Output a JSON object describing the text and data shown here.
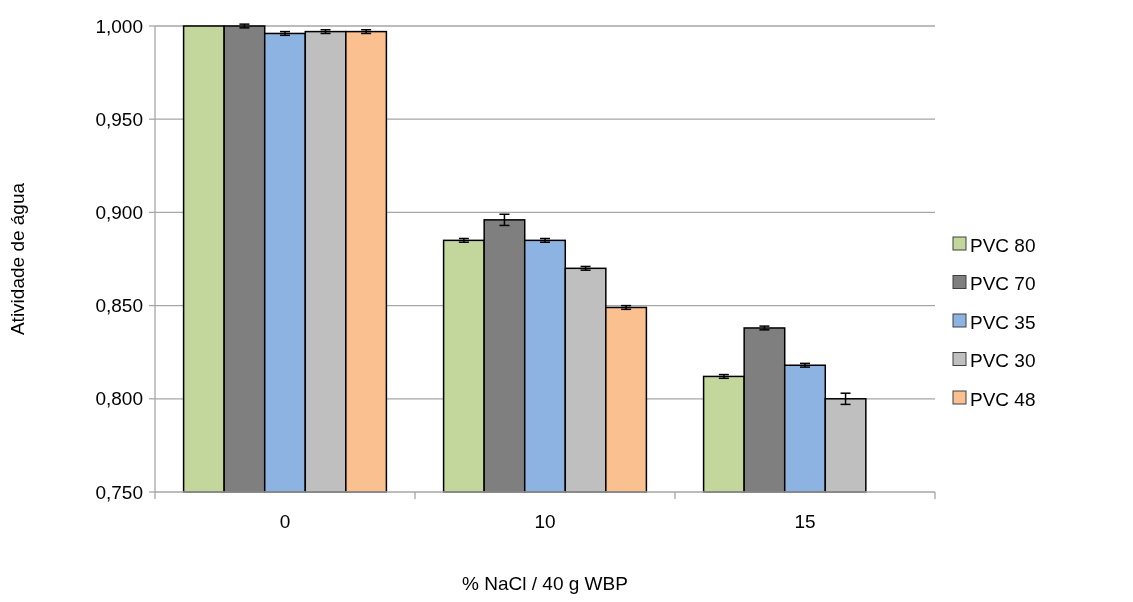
{
  "chart_data": {
    "type": "bar",
    "xlabel": "% NaCl / 40 g WBP",
    "ylabel": "Atividade de água",
    "categories": [
      "0",
      "10",
      "15"
    ],
    "series": [
      {
        "name": "PVC 80",
        "color": "#c3d69b",
        "values": [
          1.0,
          0.885,
          0.812
        ],
        "errors": [
          null,
          0.001,
          0.001
        ]
      },
      {
        "name": "PVC 70",
        "color": "#7f7f7f",
        "values": [
          1.0,
          0.896,
          0.838
        ],
        "errors": [
          0.001,
          0.003,
          0.001
        ]
      },
      {
        "name": "PVC 35",
        "color": "#8db3e2",
        "values": [
          0.996,
          0.885,
          0.818
        ],
        "errors": [
          0.001,
          0.001,
          0.001
        ]
      },
      {
        "name": "PVC 30",
        "color": "#bfbfbf",
        "values": [
          0.997,
          0.87,
          0.8
        ],
        "errors": [
          0.001,
          0.001,
          0.003
        ]
      },
      {
        "name": "PVC 48",
        "color": "#fac090",
        "values": [
          0.997,
          0.849,
          null
        ],
        "errors": [
          0.001,
          0.001,
          null
        ]
      }
    ],
    "ylim": [
      0.75,
      1.0
    ],
    "yticks": [
      {
        "value": 0.75,
        "label": "0,750"
      },
      {
        "value": 0.8,
        "label": "0,800"
      },
      {
        "value": 0.85,
        "label": "0,850"
      },
      {
        "value": 0.9,
        "label": "0,900"
      },
      {
        "value": 0.95,
        "label": "0,950"
      },
      {
        "value": 1.0,
        "label": "1,000"
      }
    ],
    "grid": "y",
    "legend": "right"
  }
}
